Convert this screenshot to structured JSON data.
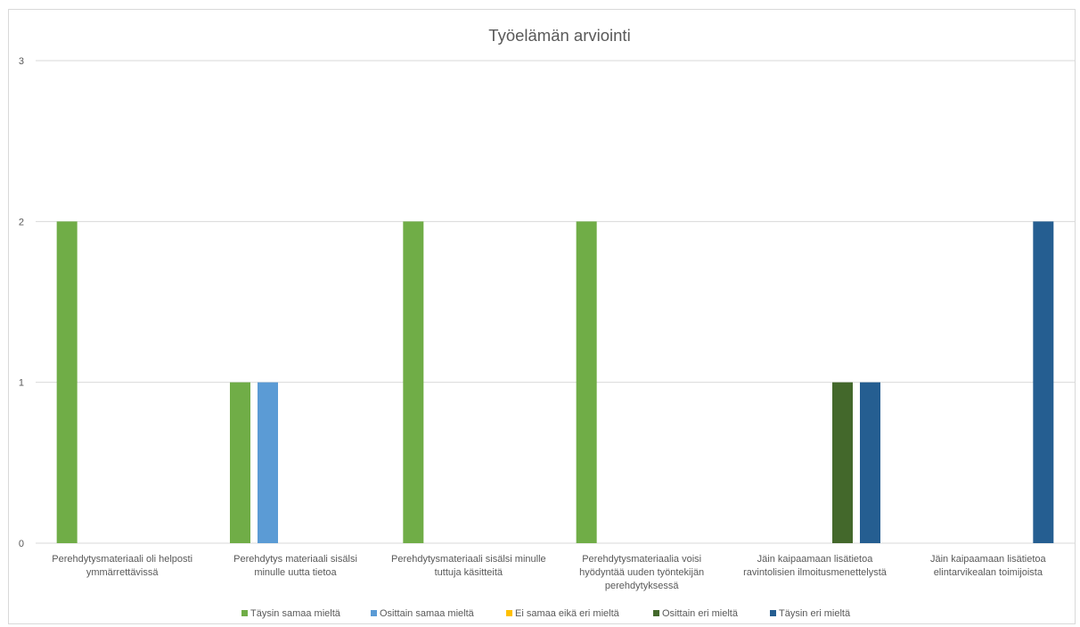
{
  "chart_data": {
    "type": "bar",
    "title": "Työelämän arviointi",
    "xlabel": "",
    "ylabel": "",
    "ylim": [
      0,
      3
    ],
    "yticks": [
      0,
      1,
      2,
      3
    ],
    "grid": true,
    "legend_position": "bottom",
    "categories": [
      [
        "Perehdytysmateriaali oli helposti",
        "ymmärrettävissä"
      ],
      [
        "Perehdytys materiaali sisälsi",
        "minulle uutta tietoa"
      ],
      [
        "Perehdytysmateriaali sisälsi minulle",
        "tuttuja käsitteitä"
      ],
      [
        "Perehdytysmateriaalia voisi",
        "hyödyntää uuden työntekijän",
        "perehdytyksessä"
      ],
      [
        "Jäin kaipaamaan lisätietoa",
        "ravintolisien ilmoitusmenettelystä"
      ],
      [
        "Jäin kaipaamaan lisätietoa",
        "elintarvikealan toimijoista"
      ]
    ],
    "series": [
      {
        "name": "Täysin samaa mieltä",
        "color": "#70ad47",
        "values": [
          2,
          1,
          2,
          2,
          0,
          0
        ]
      },
      {
        "name": "Osittain samaa mieltä",
        "color": "#5b9bd5",
        "values": [
          0,
          1,
          0,
          0,
          0,
          0
        ]
      },
      {
        "name": "Ei samaa eikä eri mieltä",
        "color": "#ffc000",
        "values": [
          0,
          0,
          0,
          0,
          0,
          0
        ]
      },
      {
        "name": "Osittain eri mieltä",
        "color": "#43682b",
        "values": [
          0,
          0,
          0,
          0,
          1,
          0
        ]
      },
      {
        "name": "Täysin eri mieltä",
        "color": "#255e91",
        "values": [
          0,
          0,
          0,
          0,
          1,
          2
        ]
      }
    ]
  }
}
